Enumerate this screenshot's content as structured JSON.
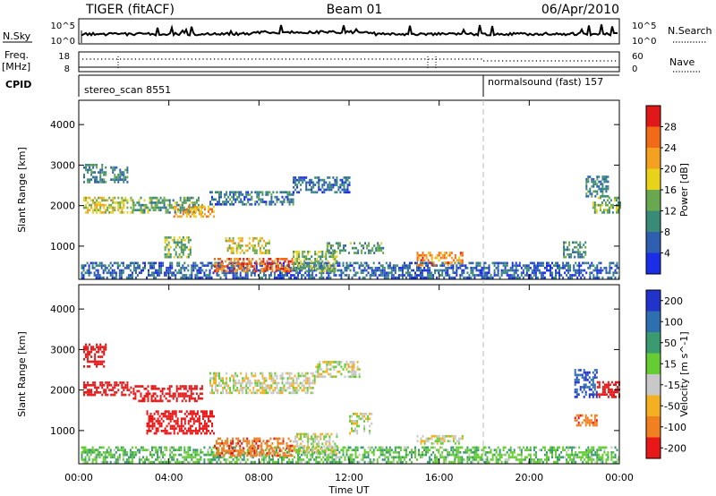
{
  "header": {
    "station": "TIGER (fitACF)",
    "beam": "Beam 01",
    "date": "06/Apr/2010"
  },
  "params_panel": {
    "nsky_label": "N.Sky",
    "nsky_top": "10^5",
    "nsky_bottom": "10^0",
    "nsearch_label": "N.Search",
    "nsearch_top": "10^5",
    "nsearch_bottom": "10^0",
    "freq_label": "Freq.",
    "freq_unit": "[MHz]",
    "freq_top": "18",
    "freq_bottom": "8",
    "nave_label": "Nave",
    "nave_top": "60",
    "nave_bottom": "0",
    "cpid_label": "CPID",
    "cpid_modes": [
      {
        "name": "stereo_scan 8551",
        "start_hour": 0
      },
      {
        "name": "normalsound (fast) 157",
        "start_hour": 18
      }
    ]
  },
  "chart_data": [
    {
      "type": "heatmap",
      "variable": "Power",
      "xlabel": "",
      "ylabel": "Slant Range [km]",
      "xlim_hours": [
        0,
        24
      ],
      "ylim": [
        180,
        4600
      ],
      "yticks": [
        1000,
        2000,
        3000,
        4000
      ],
      "xticks": [
        "00:00",
        "04:00",
        "08:00",
        "12:00",
        "16:00",
        "20:00",
        "00:00"
      ],
      "colorbar": {
        "label": "Power [dB]",
        "ticks": [
          4,
          8,
          12,
          16,
          20,
          24,
          28
        ],
        "range": [
          0,
          32
        ],
        "colors": [
          "#1a2ee8",
          "#2e5fb0",
          "#3a8a78",
          "#6aa84f",
          "#e8d21a",
          "#f4a020",
          "#f06a18",
          "#e01818"
        ]
      },
      "regions": [
        {
          "t0": 0.1,
          "t1": 24,
          "r0": 190,
          "r1": 600,
          "value": 6
        },
        {
          "t0": 0.2,
          "t1": 1.2,
          "r0": 2550,
          "r1": 3000,
          "value": 10
        },
        {
          "t0": 1.4,
          "t1": 2.2,
          "r0": 2550,
          "r1": 2950,
          "value": 9
        },
        {
          "t0": 0.2,
          "t1": 2.4,
          "r0": 1800,
          "r1": 2200,
          "value": 18
        },
        {
          "t0": 2.4,
          "t1": 5.5,
          "r0": 1800,
          "r1": 2200,
          "value": 12
        },
        {
          "t0": 4.2,
          "t1": 6.0,
          "r0": 1700,
          "r1": 2000,
          "value": 22
        },
        {
          "t0": 5.8,
          "t1": 9.5,
          "r0": 2000,
          "r1": 2350,
          "value": 8
        },
        {
          "t0": 9.5,
          "t1": 12.0,
          "r0": 2300,
          "r1": 2700,
          "value": 7
        },
        {
          "t0": 3.8,
          "t1": 5.0,
          "r0": 700,
          "r1": 1200,
          "value": 14
        },
        {
          "t0": 6.0,
          "t1": 9.5,
          "r0": 350,
          "r1": 700,
          "value": 26
        },
        {
          "t0": 6.5,
          "t1": 8.5,
          "r0": 800,
          "r1": 1200,
          "value": 18
        },
        {
          "t0": 9.5,
          "t1": 11.5,
          "r0": 350,
          "r1": 850,
          "value": 14
        },
        {
          "t0": 11.0,
          "t1": 13.5,
          "r0": 800,
          "r1": 1100,
          "value": 12
        },
        {
          "t0": 15.0,
          "t1": 17.0,
          "r0": 500,
          "r1": 850,
          "value": 24
        },
        {
          "t0": 21.5,
          "t1": 22.5,
          "r0": 700,
          "r1": 1100,
          "value": 10
        },
        {
          "t0": 22.8,
          "t1": 24.0,
          "r0": 1800,
          "r1": 2200,
          "value": 14
        },
        {
          "t0": 22.5,
          "t1": 23.5,
          "r0": 2200,
          "r1": 2700,
          "value": 9
        }
      ]
    },
    {
      "type": "heatmap",
      "variable": "Velocity",
      "xlabel": "Time UT",
      "ylabel": "Slant Range [km]",
      "xlim_hours": [
        0,
        24
      ],
      "ylim": [
        180,
        4600
      ],
      "yticks": [
        1000,
        2000,
        3000,
        4000
      ],
      "xticks": [
        "00:00",
        "04:00",
        "08:00",
        "12:00",
        "16:00",
        "20:00",
        "00:00"
      ],
      "colorbar": {
        "label": "Velocity [m s^-1]",
        "ticks": [
          200,
          100,
          50,
          15,
          -15,
          -50,
          -100,
          -200
        ],
        "colors": [
          "#2233cc",
          "#2e6fb0",
          "#3a9a70",
          "#66cc33",
          "#c8c8c8",
          "#f4b020",
          "#f08020",
          "#e81818"
        ]
      },
      "regions": [
        {
          "t0": 0.1,
          "t1": 24,
          "r0": 190,
          "r1": 600,
          "value": 40
        },
        {
          "t0": 0.2,
          "t1": 1.2,
          "r0": 2550,
          "r1": 3100,
          "value": -200
        },
        {
          "t0": 0.2,
          "t1": 2.4,
          "r0": 1850,
          "r1": 2200,
          "value": -200
        },
        {
          "t0": 2.4,
          "t1": 5.5,
          "r0": 1700,
          "r1": 2100,
          "value": -180
        },
        {
          "t0": 3.0,
          "t1": 6.0,
          "r0": 900,
          "r1": 1500,
          "value": -160
        },
        {
          "t0": 5.8,
          "t1": 10.5,
          "r0": 1900,
          "r1": 2400,
          "value": 0
        },
        {
          "t0": 10.5,
          "t1": 12.5,
          "r0": 2300,
          "r1": 2700,
          "value": 0
        },
        {
          "t0": 6.0,
          "t1": 9.5,
          "r0": 350,
          "r1": 800,
          "value": -80
        },
        {
          "t0": 9.5,
          "t1": 11.5,
          "r0": 400,
          "r1": 900,
          "value": 0
        },
        {
          "t0": 12.0,
          "t1": 13.0,
          "r0": 900,
          "r1": 1400,
          "value": 0
        },
        {
          "t0": 15.0,
          "t1": 17.0,
          "r0": 650,
          "r1": 850,
          "value": 0
        },
        {
          "t0": 22.0,
          "t1": 23.0,
          "r0": 1800,
          "r1": 2500,
          "value": 200
        },
        {
          "t0": 23.0,
          "t1": 24.0,
          "r0": 1800,
          "r1": 2200,
          "value": -200
        },
        {
          "t0": 22.0,
          "t1": 23.0,
          "r0": 1100,
          "r1": 1400,
          "value": -80
        }
      ]
    }
  ]
}
